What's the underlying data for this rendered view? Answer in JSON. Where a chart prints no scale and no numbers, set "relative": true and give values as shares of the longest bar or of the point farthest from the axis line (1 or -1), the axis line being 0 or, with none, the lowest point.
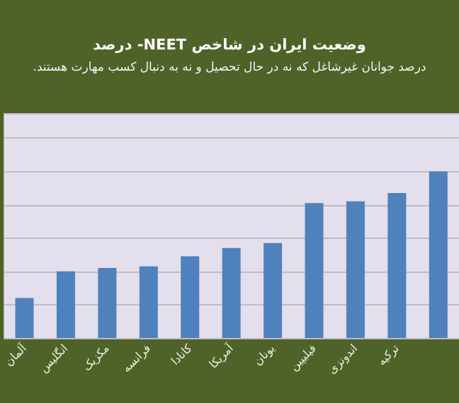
{
  "chart_data": {
    "type": "bar",
    "title": "وضعیت ایران در شاخص NEET- درصد",
    "subtitle": "درصد جوانان غیرشاغل که نه در حال تحصیل و نه به دنبال کسب مهارت هستند.",
    "categories": [
      "آلمان",
      "انگلیس",
      "مکزیک",
      "فرانسه",
      "کانادا",
      "آمریکا",
      "یونان",
      "فیلیپین",
      "اندونزی",
      "ترکیه",
      null
    ],
    "values": [
      0.24,
      0.4,
      0.42,
      0.43,
      0.49,
      0.54,
      0.57,
      0.81,
      0.82,
      0.87,
      1
    ],
    "color": "#4f81bd",
    "relative": true,
    "grid": "y"
  }
}
